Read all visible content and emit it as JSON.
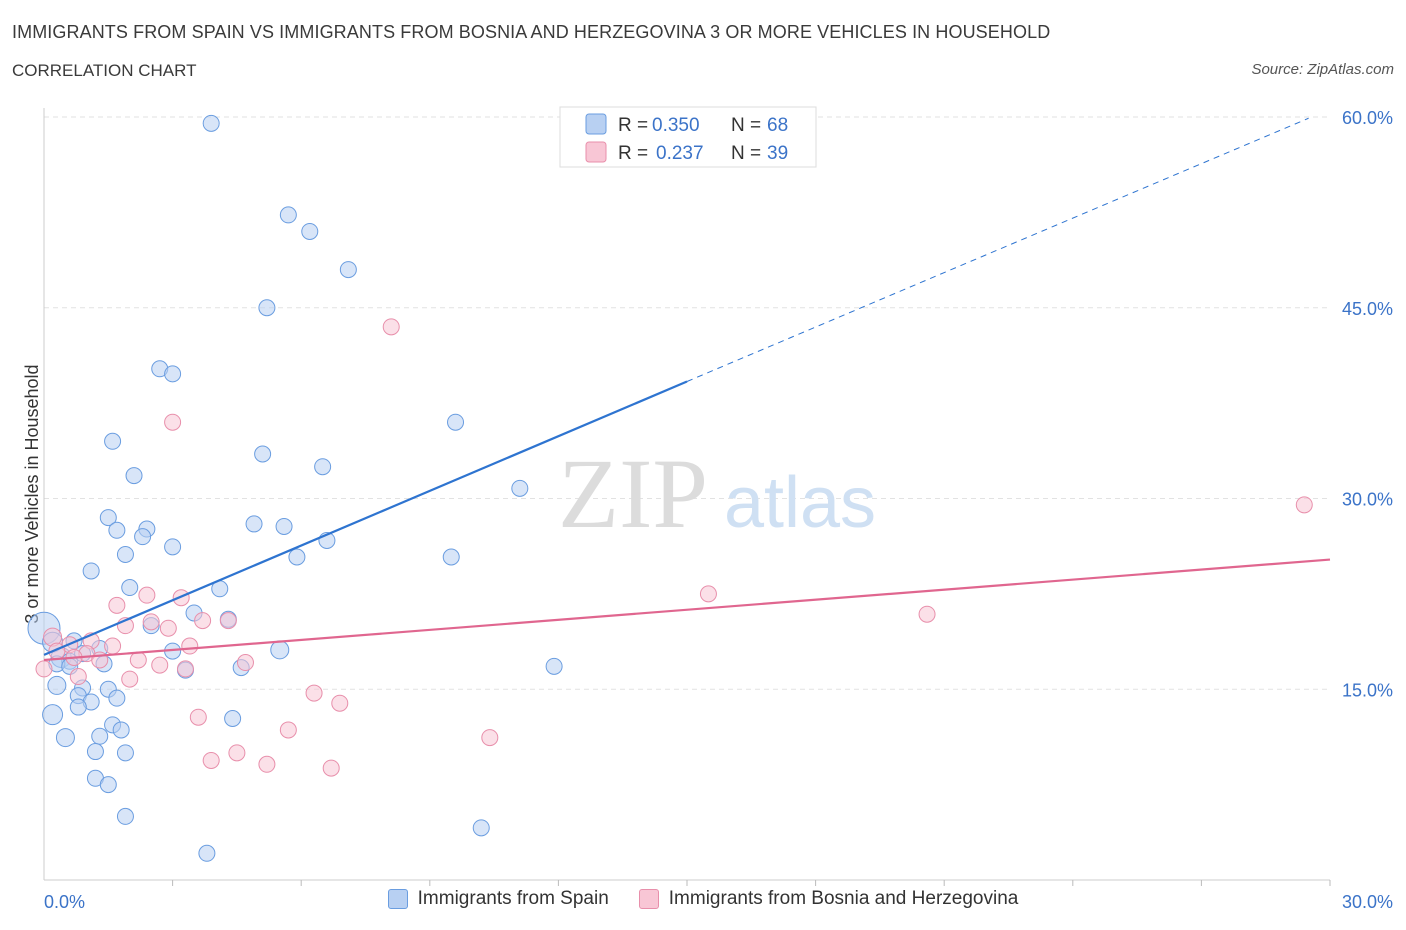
{
  "header": {
    "title": "IMMIGRANTS FROM SPAIN VS IMMIGRANTS FROM BOSNIA AND HERZEGOVINA 3 OR MORE VEHICLES IN HOUSEHOLD",
    "subtitle": "CORRELATION CHART",
    "source": "Source: ZipAtlas.com"
  },
  "watermark": {
    "zip": "ZIP",
    "atlas": "atlas"
  },
  "stats": {
    "r_label": "R =",
    "n_label": "N =",
    "series": [
      {
        "r": "0.350",
        "n": "68"
      },
      {
        "r": "0.237",
        "n": "39"
      }
    ]
  },
  "legend": {
    "items": [
      {
        "label": "Immigrants from Spain"
      },
      {
        "label": "Immigrants from Bosnia and Herzegovina"
      }
    ]
  },
  "colors": {
    "blue_fill": "#b8d0f2",
    "blue_stroke": "#6a9de0",
    "blue_line": "#2e74d0",
    "pink_fill": "#f8c6d5",
    "pink_stroke": "#e88fab",
    "pink_line": "#e0668f",
    "axis_text": "#3b73c8",
    "grid": "#e2e2e2"
  },
  "chart_data": {
    "type": "scatter",
    "title": "IMMIGRANTS FROM SPAIN VS IMMIGRANTS FROM BOSNIA AND HERZEGOVINA 3 OR MORE VEHICLES IN HOUSEHOLD",
    "subtitle": "CORRELATION CHART",
    "ylabel": "3 or more Vehicles in Household",
    "xlabel": "",
    "xlim": [
      0,
      30
    ],
    "ylim": [
      0,
      60
    ],
    "x_tick_labels": [
      "0.0%",
      "30.0%"
    ],
    "y_ticks": [
      {
        "value": 15,
        "label": "15.0%"
      },
      {
        "value": 30,
        "label": "30.0%"
      },
      {
        "value": 45,
        "label": "45.0%"
      },
      {
        "value": 60,
        "label": "60.0%"
      }
    ],
    "grid": true,
    "series": [
      {
        "name": "Immigrants from Spain",
        "color": "#6a9de0",
        "trend": {
          "x1": 0,
          "y1": 17.7,
          "x2": 15,
          "y2": 39.2,
          "dash_to_x": 29.5,
          "dash_to_y": 59.9
        },
        "points": [
          [
            3.9,
            59.5,
            8
          ],
          [
            5.7,
            52.3,
            8
          ],
          [
            6.2,
            51.0,
            8
          ],
          [
            7.1,
            48.0,
            8
          ],
          [
            5.2,
            45.0,
            8
          ],
          [
            2.7,
            40.2,
            8
          ],
          [
            3.0,
            39.8,
            8
          ],
          [
            9.6,
            36.0,
            8
          ],
          [
            1.6,
            34.5,
            8
          ],
          [
            5.1,
            33.5,
            8
          ],
          [
            6.5,
            32.5,
            8
          ],
          [
            2.1,
            31.8,
            8
          ],
          [
            11.1,
            30.8,
            8
          ],
          [
            1.5,
            28.5,
            8
          ],
          [
            1.7,
            27.5,
            8
          ],
          [
            2.4,
            27.6,
            8
          ],
          [
            4.9,
            28.0,
            8
          ],
          [
            5.6,
            27.8,
            8
          ],
          [
            6.6,
            26.7,
            8
          ],
          [
            2.3,
            27.0,
            8
          ],
          [
            3.0,
            26.2,
            8
          ],
          [
            1.9,
            25.6,
            8
          ],
          [
            5.9,
            25.4,
            8
          ],
          [
            9.5,
            25.4,
            8
          ],
          [
            1.1,
            24.3,
            8
          ],
          [
            2.0,
            23.0,
            8
          ],
          [
            4.1,
            22.9,
            8
          ],
          [
            3.5,
            21.0,
            8
          ],
          [
            4.3,
            20.5,
            8
          ],
          [
            2.5,
            20.0,
            8
          ],
          [
            0.0,
            19.8,
            16
          ],
          [
            0.2,
            18.7,
            10
          ],
          [
            0.7,
            18.8,
            8
          ],
          [
            5.5,
            18.1,
            9
          ],
          [
            3.0,
            18.0,
            8
          ],
          [
            1.3,
            18.2,
            8
          ],
          [
            0.4,
            17.5,
            10
          ],
          [
            0.6,
            17.2,
            8
          ],
          [
            0.9,
            17.8,
            8
          ],
          [
            1.4,
            17.0,
            8
          ],
          [
            0.3,
            17.0,
            8
          ],
          [
            0.6,
            16.8,
            8
          ],
          [
            4.6,
            16.7,
            8
          ],
          [
            11.9,
            16.8,
            8
          ],
          [
            3.3,
            16.5,
            8
          ],
          [
            0.3,
            15.3,
            9
          ],
          [
            0.9,
            15.1,
            8
          ],
          [
            1.5,
            15.0,
            8
          ],
          [
            0.8,
            14.5,
            8
          ],
          [
            1.7,
            14.3,
            8
          ],
          [
            1.1,
            14.0,
            8
          ],
          [
            0.2,
            13.0,
            10
          ],
          [
            0.8,
            13.6,
            8
          ],
          [
            4.4,
            12.7,
            8
          ],
          [
            1.6,
            12.2,
            8
          ],
          [
            1.8,
            11.8,
            8
          ],
          [
            0.5,
            11.2,
            9
          ],
          [
            1.3,
            11.3,
            8
          ],
          [
            1.2,
            10.1,
            8
          ],
          [
            1.9,
            10.0,
            8
          ],
          [
            1.2,
            8.0,
            8
          ],
          [
            1.5,
            7.5,
            8
          ],
          [
            1.9,
            5.0,
            8
          ],
          [
            10.2,
            4.1,
            8
          ],
          [
            3.8,
            2.1,
            8
          ]
        ]
      },
      {
        "name": "Immigrants from Bosnia and Herzegovina",
        "color": "#e88fab",
        "trend": {
          "x1": 0,
          "y1": 17.3,
          "x2": 30,
          "y2": 25.2
        },
        "points": [
          [
            8.1,
            43.5,
            8
          ],
          [
            3.0,
            36.0,
            8
          ],
          [
            29.4,
            29.5,
            8
          ],
          [
            15.5,
            22.5,
            8
          ],
          [
            20.6,
            20.9,
            8
          ],
          [
            2.4,
            22.4,
            8
          ],
          [
            3.2,
            22.2,
            8
          ],
          [
            1.7,
            21.6,
            8
          ],
          [
            4.3,
            20.4,
            8
          ],
          [
            3.7,
            20.4,
            8
          ],
          [
            2.5,
            20.3,
            8
          ],
          [
            1.9,
            20.0,
            8
          ],
          [
            2.9,
            19.8,
            8
          ],
          [
            0.2,
            19.1,
            9
          ],
          [
            1.1,
            18.8,
            8
          ],
          [
            0.6,
            18.5,
            8
          ],
          [
            1.6,
            18.4,
            8
          ],
          [
            3.4,
            18.4,
            8
          ],
          [
            0.3,
            18.0,
            8
          ],
          [
            1.0,
            17.8,
            8
          ],
          [
            0.7,
            17.5,
            8
          ],
          [
            1.3,
            17.3,
            8
          ],
          [
            2.2,
            17.3,
            8
          ],
          [
            4.7,
            17.1,
            8
          ],
          [
            2.7,
            16.9,
            8
          ],
          [
            0.0,
            16.6,
            8
          ],
          [
            3.3,
            16.6,
            8
          ],
          [
            0.8,
            16.0,
            8
          ],
          [
            2.0,
            15.8,
            8
          ],
          [
            6.3,
            14.7,
            8
          ],
          [
            6.9,
            13.9,
            8
          ],
          [
            3.6,
            12.8,
            8
          ],
          [
            5.7,
            11.8,
            8
          ],
          [
            10.4,
            11.2,
            8
          ],
          [
            4.5,
            10.0,
            8
          ],
          [
            3.9,
            9.4,
            8
          ],
          [
            5.2,
            9.1,
            8
          ],
          [
            6.7,
            8.8,
            8
          ]
        ]
      }
    ]
  }
}
